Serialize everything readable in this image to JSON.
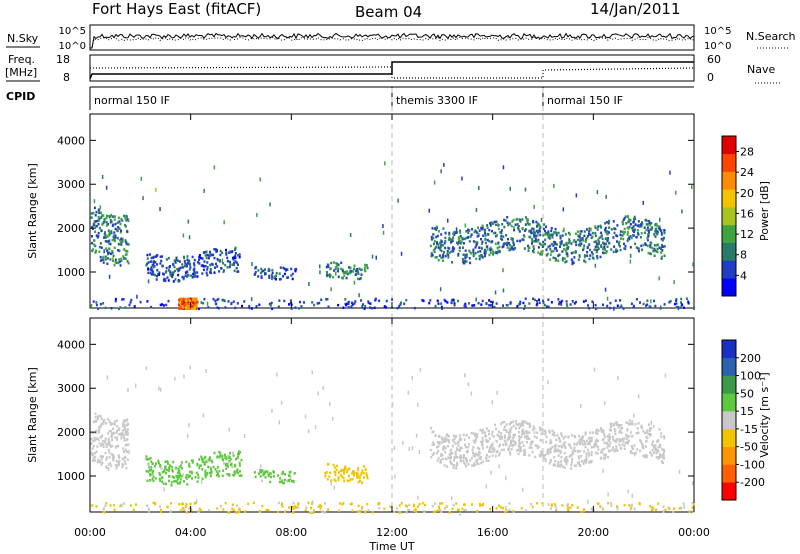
{
  "header": {
    "station": "Fort Hays East (fitACF)",
    "beam": "Beam 04",
    "date": "14/Jan/2011"
  },
  "noise_panel": {
    "left_label": "N.Sky",
    "left_ticks": [
      "10^5",
      "10^0"
    ],
    "right_label": "N.Search",
    "right_ticks": [
      "10^5",
      "10^0"
    ]
  },
  "freq_panel": {
    "left_label_line1": "Freq.",
    "left_label_line2": "[MHz]",
    "left_ticks": [
      "18",
      "8"
    ],
    "right_label": "Nave",
    "right_ticks": [
      "60",
      "0"
    ]
  },
  "cpid_panel": {
    "label": "CPID",
    "segments": [
      {
        "start_ut": 0,
        "end_ut": 12,
        "name": "normal 150 IF"
      },
      {
        "start_ut": 12,
        "end_ut": 18,
        "name": "themis 3300 IF"
      },
      {
        "start_ut": 18,
        "end_ut": 24,
        "name": "normal 150 IF"
      }
    ]
  },
  "x_axis": {
    "label": "Time UT",
    "ticks": [
      "00:00",
      "04:00",
      "08:00",
      "12:00",
      "16:00",
      "20:00",
      "00:00"
    ]
  },
  "colors": {
    "axis": "#000000",
    "divider": "#bbbbbb"
  },
  "chart_data": [
    {
      "type": "heatmap",
      "name": "power",
      "ylabel": "Slant Range [km]",
      "xlim": [
        0,
        24
      ],
      "ylim": [
        180,
        4600
      ],
      "yticks": [
        "1000",
        "2000",
        "3000",
        "4000"
      ],
      "colorbar": {
        "label": "Power [dB]",
        "ticks": [
          "4",
          "8",
          "12",
          "16",
          "20",
          "24",
          "28"
        ],
        "range": [
          0,
          31
        ],
        "colors": [
          "#0000ff",
          "#1f3ec2",
          "#2a7a6a",
          "#3fa33f",
          "#a8c51e",
          "#f2c400",
          "#ff8c00",
          "#ff4500",
          "#e00000"
        ]
      },
      "regions": [
        {
          "t": [
            0.0,
            1.5
          ],
          "r": [
            1150,
            2800
          ],
          "level": [
            4,
            14
          ]
        },
        {
          "t": [
            2.2,
            6.0
          ],
          "r": [
            800,
            1600
          ],
          "level": [
            3,
            9
          ]
        },
        {
          "t": [
            6.5,
            8.2
          ],
          "r": [
            850,
            1250
          ],
          "level": [
            3,
            10
          ]
        },
        {
          "t": [
            9.3,
            11.0
          ],
          "r": [
            850,
            1400
          ],
          "level": [
            4,
            14
          ]
        },
        {
          "t": [
            13.5,
            22.8
          ],
          "r": [
            1200,
            2300
          ],
          "level": [
            4,
            12
          ]
        },
        {
          "t": [
            0.0,
            24.0
          ],
          "r": [
            190,
            420
          ],
          "level": [
            2,
            8
          ]
        },
        {
          "t": [
            3.5,
            4.2
          ],
          "r": [
            190,
            420
          ],
          "level": [
            18,
            30
          ]
        }
      ]
    },
    {
      "type": "heatmap",
      "name": "velocity",
      "ylabel": "Slant Range [km]",
      "xlim": [
        0,
        24
      ],
      "ylim": [
        180,
        4600
      ],
      "yticks": [
        "1000",
        "2000",
        "3000",
        "4000"
      ],
      "colorbar": {
        "label": "Velocity [m s⁻¹]",
        "ticks": [
          "200",
          "100",
          "50",
          "15",
          "-15",
          "-50",
          "-100",
          "-200"
        ],
        "range": [
          -250,
          250
        ],
        "colors": [
          "#ff0000",
          "#ff6000",
          "#ff9500",
          "#f2c400",
          "#c8c8c8",
          "#5ec83e",
          "#3a9a4a",
          "#2a62b0",
          "#1a30c0"
        ]
      },
      "regions": [
        {
          "t": [
            0.0,
            1.5
          ],
          "r": [
            1150,
            2800
          ],
          "level": [
            -20,
            20
          ]
        },
        {
          "t": [
            2.2,
            6.0
          ],
          "r": [
            800,
            1600
          ],
          "level": [
            25,
            70
          ]
        },
        {
          "t": [
            6.5,
            8.2
          ],
          "r": [
            850,
            1250
          ],
          "level": [
            25,
            70
          ]
        },
        {
          "t": [
            9.3,
            11.0
          ],
          "r": [
            850,
            1400
          ],
          "level": [
            -80,
            -40
          ]
        },
        {
          "t": [
            13.5,
            22.8
          ],
          "r": [
            1200,
            2300
          ],
          "level": [
            -20,
            20
          ]
        },
        {
          "t": [
            0.0,
            24.0
          ],
          "r": [
            190,
            420
          ],
          "level": [
            -50,
            -20
          ]
        }
      ]
    }
  ]
}
